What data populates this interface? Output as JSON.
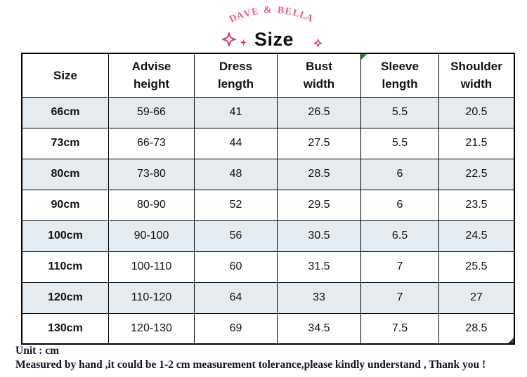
{
  "brand": {
    "name": "DAVE & BELLA"
  },
  "title": "Size",
  "icons": {
    "sparkle_large": "four-point-sparkle-outline",
    "sparkle_small": "four-point-sparkle-filled",
    "sparkle_right": "four-point-sparkle-outline",
    "error_flag": "green-corner-triangle",
    "corner_marker": "navy-corner-triangle"
  },
  "theme": {
    "brand_pink": "#e55f86",
    "sparkle_pink": "#d63c6e",
    "stripe_blue": "#e4ecf3",
    "border_black": "#000000",
    "footer_ink": "#16162c",
    "flag_green": "#1e7e34",
    "flag_navy": "#2b3f6b"
  },
  "table": {
    "columns": [
      "Size",
      "Advise height",
      "Dress length",
      "Bust width",
      "Sleeve length",
      "Shoulder width"
    ],
    "rows": [
      [
        "66cm",
        "59-66",
        "41",
        "26.5",
        "5.5",
        "20.5"
      ],
      [
        "73cm",
        "66-73",
        "44",
        "27.5",
        "5.5",
        "21.5"
      ],
      [
        "80cm",
        "73-80",
        "48",
        "28.5",
        "6",
        "22.5"
      ],
      [
        "90cm",
        "80-90",
        "52",
        "29.5",
        "6",
        "23.5"
      ],
      [
        "100cm",
        "90-100",
        "56",
        "30.5",
        "6.5",
        "24.5"
      ],
      [
        "110cm",
        "100-110",
        "60",
        "31.5",
        "7",
        "25.5"
      ],
      [
        "120cm",
        "110-120",
        "64",
        "33",
        "7",
        "27"
      ],
      [
        "130cm",
        "120-130",
        "69",
        "34.5",
        "7.5",
        "28.5"
      ]
    ],
    "striped_row_indices": [
      0,
      2,
      4,
      6
    ]
  },
  "footer": {
    "unit_line": "Unit : cm",
    "tolerance_line": "Measured by hand ,it could be 1-2 cm measurement tolerance,please kindly understand , Thank you !"
  }
}
